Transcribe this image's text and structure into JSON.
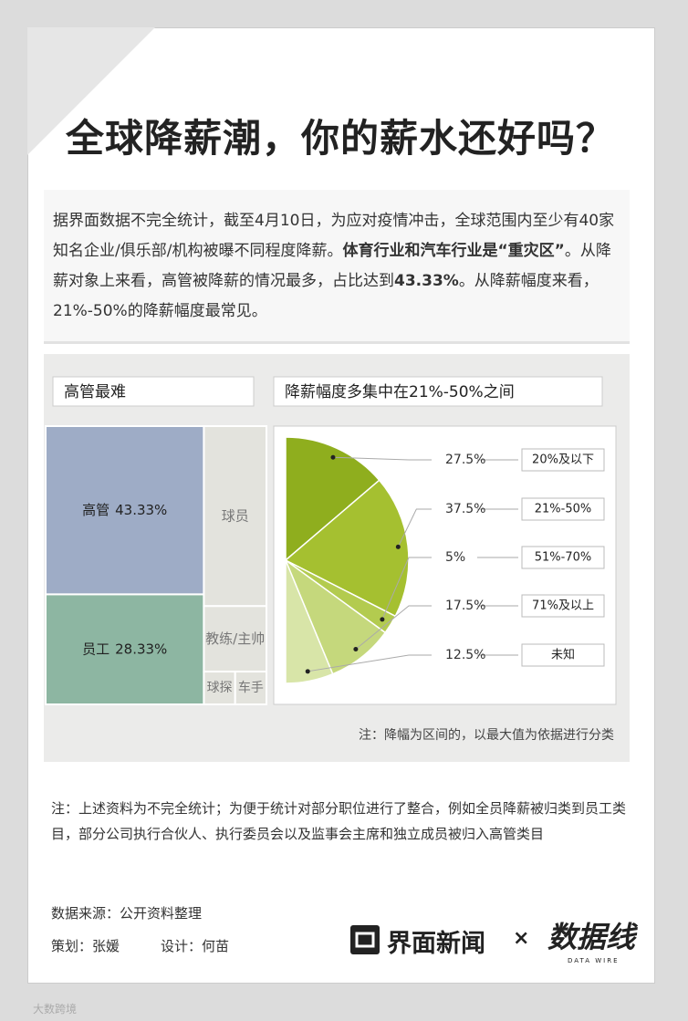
{
  "title": "全球降薪潮，你的薪水还好吗？",
  "intro": [
    {
      "text": "据界面数据不完全统计，截至4月10日，为应对疫情冲击，全球范围内至少有40家知名企业/俱乐部/机构被曝不同程度降薪。",
      "bold": false
    },
    {
      "text": "体育行业和汽车行业是“重灾区”",
      "bold": true
    },
    {
      "text": "。从降薪对象上来看，高管被降薪的情况最多，占比达到",
      "bold": false
    },
    {
      "text": "43.33%",
      "bold": true
    },
    {
      "text": "。从降薪幅度来看，21%-50%的降薪幅度最常见。",
      "bold": false
    }
  ],
  "chart_data": [
    {
      "type": "treemap",
      "title": "高管最难",
      "categories": [
        "高管",
        "员工",
        "球员",
        "教练/主帅",
        "球探",
        "车手"
      ],
      "values": [
        43.33,
        28.33,
        18.33,
        6.67,
        1.67,
        1.67
      ],
      "value_labels": [
        "43.33%",
        "28.33%",
        null,
        null,
        null,
        null
      ],
      "colors": [
        "#9eacc6",
        "#8db6a2",
        "#e3e3dd",
        "#e3e3dd",
        "#e3e3dd",
        "#e3e3dd"
      ]
    },
    {
      "type": "pie",
      "title": "降薪幅度多集中在21%-50%之间",
      "categories": [
        "20%及以下",
        "21%-50%",
        "51%-70%",
        "71%及以上",
        "未知"
      ],
      "values": [
        27.5,
        37.5,
        5,
        17.5,
        12.5
      ],
      "value_labels": [
        "27.5%",
        "37.5%",
        "5%",
        "17.5%",
        "12.5%"
      ],
      "colors": [
        "#8fae1e",
        "#a5c030",
        "#b3cb4f",
        "#c5d87c",
        "#d8e5a8"
      ],
      "note": "注：降幅为区间的，以最大值为依据进行分类"
    }
  ],
  "notes": "注：上述资料为不完全统计；为便于统计对部分职位进行了整合，例如全员降薪被归类到员工类目，部分公司执行合伙人、执行委员会以及监事会主席和独立成员被归入高管类目",
  "source": "数据来源：公开资料整理",
  "credits": [
    "策划：张媛",
    "设计：何苗"
  ],
  "logo": {
    "name": "界面新闻",
    "times": "×",
    "partner": "数据线",
    "partner_en": "DATA WIRE"
  },
  "watermark": "大数跨境"
}
